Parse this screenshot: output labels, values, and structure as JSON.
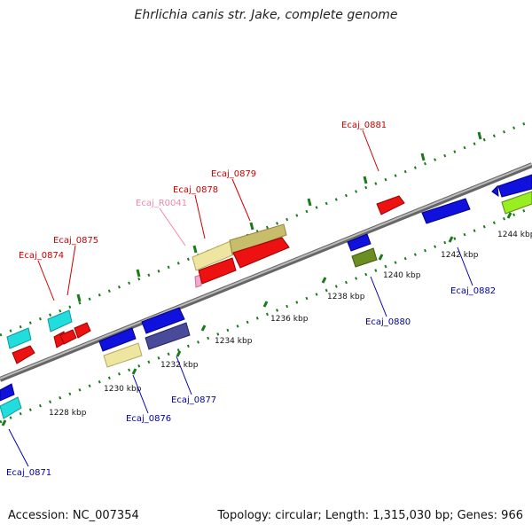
{
  "title": "Ehrlichia canis str. Jake, complete genome",
  "accession": "Accession: NC_007354",
  "topology": "Topology: circular; Length: 1,315,030 bp; Genes: 966",
  "colors": {
    "forward_label": "#cc0000",
    "reverse_label": "#0000aa",
    "rna_label": "#ee88aa",
    "tick": "#1a7a1a",
    "backbone": "#888888"
  },
  "ticks": [
    "1228 kbp",
    "1230 kbp",
    "1232 kbp",
    "1234 kbp",
    "1236 kbp",
    "1238 kbp",
    "1240 kbp",
    "1242 kbp",
    "1244 kbp"
  ],
  "forward_gene_labels": [
    "Ecaj_0874",
    "Ecaj_0875",
    "Ecaj_0878",
    "Ecaj_0879",
    "Ecaj_0881"
  ],
  "rna_gene_labels": [
    "Ecaj_R0041"
  ],
  "reverse_gene_labels": [
    "Ecaj_0871",
    "Ecaj_0876",
    "Ecaj_0877",
    "Ecaj_0880",
    "Ecaj_0882"
  ]
}
